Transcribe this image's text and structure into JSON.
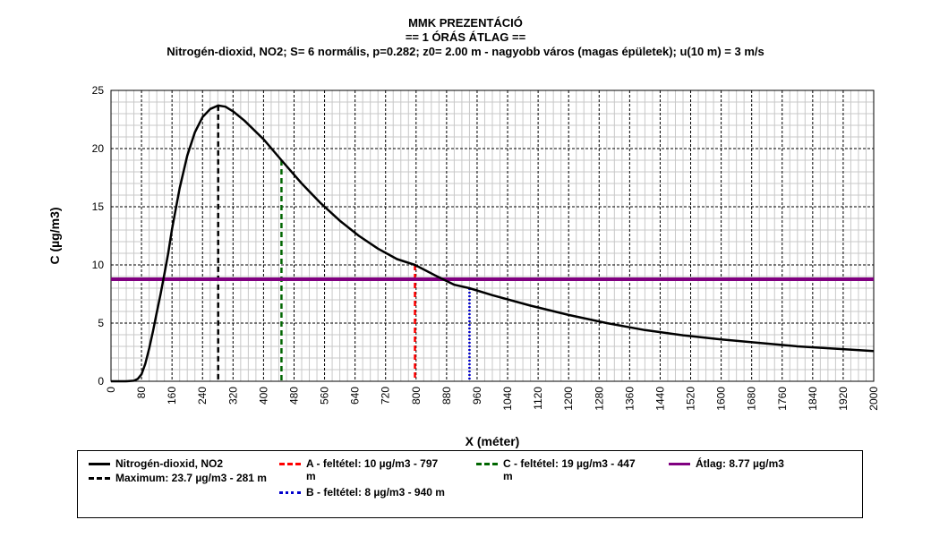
{
  "chart_data": {
    "type": "line",
    "title": "MMK PREZENTÁCIÓ",
    "subtitle": "== 1 ÓRÁS ÁTLAG ==",
    "subtitle2": "Nitrogén-dioxid, NO2; S= 6 normális, p=0.282; z0= 2.00 m - nagyobb város (magas épületek); u(10 m) = 3 m/s",
    "xlabel": "X (méter)",
    "ylabel": "C (µg/m3)",
    "xlim": [
      0,
      2000
    ],
    "ylim": [
      0,
      25
    ],
    "xticks": [
      "0",
      "80",
      "160",
      "240",
      "320",
      "400",
      "480",
      "560",
      "640",
      "720",
      "800",
      "880",
      "960",
      "1040",
      "1120",
      "1200",
      "1280",
      "1360",
      "1440",
      "1520",
      "1600",
      "1680",
      "1760",
      "1840",
      "1920",
      "2000"
    ],
    "yticks": [
      "0",
      "5",
      "10",
      "15",
      "20",
      "25"
    ],
    "grid": true,
    "legend_position": "bottom",
    "series": [
      {
        "name": "Nitrogén-dioxid, NO2",
        "color": "#000000",
        "x": [
          0,
          40,
          60,
          70,
          80,
          90,
          100,
          110,
          120,
          130,
          140,
          150,
          160,
          180,
          200,
          220,
          240,
          260,
          281,
          300,
          320,
          350,
          400,
          447,
          500,
          550,
          600,
          650,
          700,
          750,
          797,
          850,
          900,
          940,
          1000,
          1100,
          1200,
          1300,
          1400,
          1500,
          1600,
          1700,
          1800,
          1900,
          2000
        ],
        "y": [
          0,
          0,
          0.05,
          0.2,
          0.6,
          1.5,
          2.8,
          4.3,
          5.9,
          7.5,
          9.2,
          11.0,
          13.1,
          16.6,
          19.4,
          21.4,
          22.7,
          23.4,
          23.7,
          23.6,
          23.2,
          22.4,
          20.8,
          19.0,
          17.0,
          15.3,
          13.8,
          12.5,
          11.4,
          10.5,
          10.0,
          9.1,
          8.3,
          8.0,
          7.4,
          6.5,
          5.7,
          5.0,
          4.4,
          3.95,
          3.6,
          3.3,
          3.0,
          2.8,
          2.6
        ]
      }
    ],
    "reference_lines": [
      {
        "type": "vertical",
        "x": 281,
        "y": 23.7,
        "color": "#000000",
        "dash": "dashed",
        "label": "Maximum: 23.7 µg/m3 - 281 m"
      },
      {
        "type": "vertical",
        "x": 797,
        "y": 10,
        "color": "#ff0000",
        "dash": "dashed",
        "label": "A - feltétel: 10 µg/m3 - 797 m"
      },
      {
        "type": "vertical",
        "x": 940,
        "y": 8,
        "color": "#0000cc",
        "dash": "dotted",
        "label": "B - feltétel: 8 µg/m3 - 940 m"
      },
      {
        "type": "vertical",
        "x": 447,
        "y": 19,
        "color": "#006600",
        "dash": "dashed",
        "label": "C - feltétel: 19 µg/m3 - 447 m"
      },
      {
        "type": "horizontal",
        "y": 8.77,
        "color": "#800080",
        "dash": "solid",
        "label": "Átlag: 8.77 µg/m3"
      }
    ]
  }
}
